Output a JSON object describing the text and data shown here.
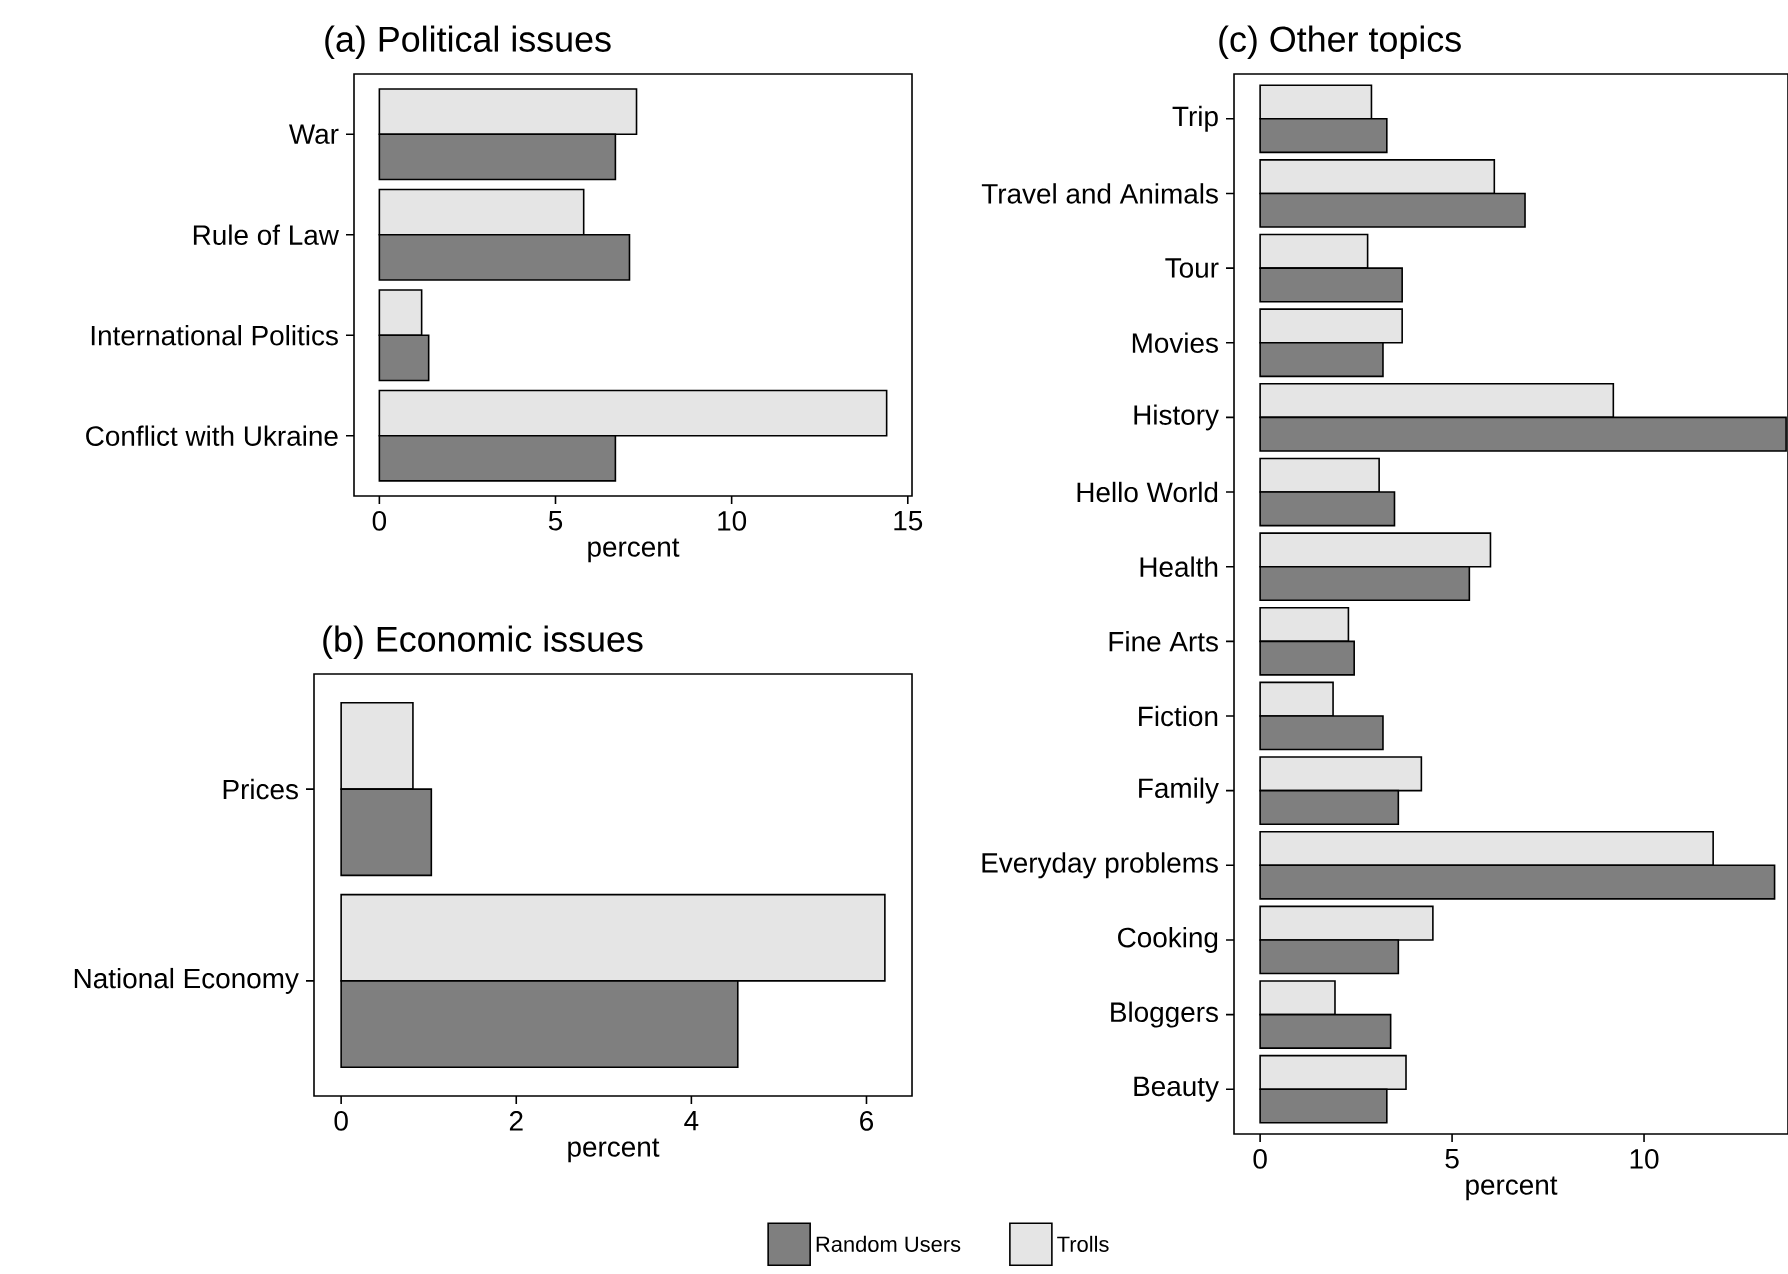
{
  "chart_data": [
    {
      "type": "bar",
      "orientation": "horizontal",
      "title": "(a) Political issues",
      "xlabel": "percent",
      "categories": [
        "War",
        "Rule of Law",
        "International Politics",
        "Conflict with Ukraine"
      ],
      "xlim": [
        -0.72,
        15.12
      ],
      "xticks": [
        0,
        5,
        10,
        15
      ],
      "series": [
        {
          "color": "#e5e5e5",
          "values": [
            7.3,
            5.8,
            1.2,
            14.4
          ]
        },
        {
          "color": "#7f7f7f",
          "values": [
            6.7,
            7.1,
            1.4,
            6.7
          ]
        }
      ]
    },
    {
      "type": "bar",
      "orientation": "horizontal",
      "title": "(b) Economic issues",
      "xlabel": "percent",
      "categories": [
        "Prices",
        "National Economy"
      ],
      "xlim": [
        -0.31,
        6.52
      ],
      "xticks": [
        0,
        2,
        4,
        6
      ],
      "series": [
        {
          "color": "#e5e5e5",
          "values": [
            0.82,
            6.21
          ]
        },
        {
          "color": "#7f7f7f",
          "values": [
            1.03,
            4.53
          ]
        }
      ]
    },
    {
      "type": "bar",
      "orientation": "horizontal",
      "title": "(c) Other topics",
      "xlabel": "percent",
      "categories": [
        "Trip",
        "Travel and Animals",
        "Tour",
        "Movies",
        "History",
        "Hello World",
        "Health",
        "Fine Arts",
        "Fiction",
        "Family",
        "Everyday problems",
        "Cooking",
        "Bloggers",
        "Beauty"
      ],
      "xlim": [
        -0.68,
        13.75
      ],
      "xticks": [
        0,
        5,
        10
      ],
      "legend": "bottom",
      "series": [
        {
          "name": "Trolls",
          "color": "#e5e5e5",
          "values": [
            2.9,
            6.1,
            2.8,
            3.7,
            9.2,
            3.1,
            6.0,
            2.3,
            1.9,
            4.2,
            11.8,
            4.5,
            1.95,
            3.8
          ]
        },
        {
          "name": "Random Users",
          "color": "#7f7f7f",
          "values": [
            3.3,
            6.9,
            3.7,
            3.2,
            13.7,
            3.5,
            5.45,
            2.45,
            3.2,
            3.6,
            13.4,
            3.6,
            3.4,
            3.3
          ]
        }
      ]
    }
  ]
}
